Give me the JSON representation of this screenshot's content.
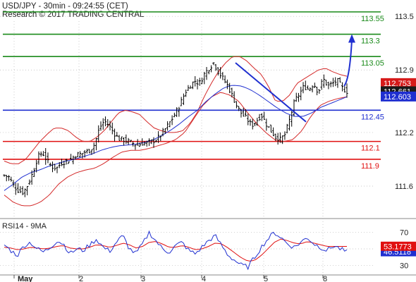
{
  "header": {
    "title": "USD/JPY - 30min - 09:24:55 (CET)",
    "subtitle": "Research © 2017 TRADING CENTRAL"
  },
  "colors": {
    "background": "#ffffff",
    "resistance": "#1a8a1a",
    "pivot": "#1f2fd0",
    "support": "#e01010",
    "bands": "#d42a2a",
    "moving_average": "#1f2fd0",
    "price_bars": "#000000",
    "current_price_box": "#1a1a1a",
    "price_tag_red": "#d61a1a",
    "price_tag_blue": "#1f2fd0",
    "rsi_line": "#1f2fd0",
    "rsi_ma": "#e01010",
    "grid": "#b8b8b8"
  },
  "chart_data": [
    {
      "type": "candlestick",
      "ylim": [
        111.3,
        113.62
      ],
      "y_ticks": [
        "113.5",
        "112.9",
        "112.2",
        "111.6"
      ],
      "x_ticks": [
        "May",
        "2",
        "3",
        "4",
        "5",
        "8"
      ],
      "grid": "dotted",
      "levels": [
        {
          "label": "113.55",
          "value": 113.55,
          "kind": "resistance"
        },
        {
          "label": "113.3",
          "value": 113.3,
          "kind": "resistance"
        },
        {
          "label": "113.05",
          "value": 113.05,
          "kind": "resistance"
        },
        {
          "label": "112.45",
          "value": 112.45,
          "kind": "pivot"
        },
        {
          "label": "112.1",
          "value": 112.1,
          "kind": "support"
        },
        {
          "label": "111.9",
          "value": 111.9,
          "kind": "support"
        }
      ],
      "price_tags": [
        {
          "label": "112.753",
          "value": 112.753,
          "style": "red"
        },
        {
          "label": "112.661",
          "value": 112.661,
          "style": "dark"
        },
        {
          "label": "112.603",
          "value": 112.603,
          "style": "blue"
        }
      ],
      "close_path": [
        111.72,
        111.7,
        111.6,
        111.55,
        111.53,
        111.62,
        111.75,
        111.92,
        111.98,
        111.88,
        111.82,
        111.8,
        111.86,
        111.88,
        111.9,
        111.95,
        111.96,
        111.98,
        112.0,
        112.07,
        112.25,
        112.33,
        112.28,
        112.2,
        112.13,
        112.12,
        112.1,
        112.08,
        112.06,
        112.08,
        112.08,
        112.1,
        112.12,
        112.18,
        112.25,
        112.33,
        112.42,
        112.52,
        112.65,
        112.72,
        112.78,
        112.75,
        112.85,
        112.92,
        112.98,
        112.88,
        112.8,
        112.72,
        112.6,
        112.48,
        112.4,
        112.35,
        112.28,
        112.33,
        112.4,
        112.3,
        112.22,
        112.15,
        112.12,
        112.18,
        112.35,
        112.55,
        112.63,
        112.72,
        112.68,
        112.75,
        112.65,
        112.8,
        112.72,
        112.75,
        112.78,
        112.7,
        112.66
      ],
      "bollinger_upper": [
        111.88,
        111.85,
        111.85,
        111.9,
        112.0,
        112.1,
        112.18,
        112.25,
        112.25,
        112.22,
        112.15,
        112.1,
        112.1,
        112.15,
        112.22,
        112.32,
        112.42,
        112.45,
        112.43,
        112.4,
        112.32,
        112.25,
        112.22,
        112.2,
        112.2,
        112.22,
        112.3,
        112.42,
        112.6,
        112.75,
        112.88,
        112.98,
        113.05,
        113.05,
        113.0,
        112.92,
        112.85,
        112.72,
        112.55,
        112.55,
        112.62,
        112.75,
        112.8,
        112.85,
        112.9,
        112.92,
        112.88,
        112.85,
        112.83
      ],
      "bollinger_lower": [
        111.5,
        111.42,
        111.38,
        111.38,
        111.42,
        111.5,
        111.62,
        111.7,
        111.75,
        111.78,
        111.8,
        111.85,
        111.92,
        111.98,
        112.0,
        112.0,
        112.02,
        112.05,
        112.08,
        112.12,
        112.2,
        112.35,
        112.5,
        112.6,
        112.65,
        112.62,
        112.55,
        112.42,
        112.3,
        112.2,
        112.12,
        112.1,
        112.12,
        112.22,
        112.38,
        112.5,
        112.55,
        112.58,
        112.6
      ],
      "moving_average": [
        111.55,
        111.62,
        111.7,
        111.75,
        111.78,
        111.82,
        111.85,
        111.88,
        111.9,
        111.93,
        111.96,
        112.0,
        112.03,
        112.05,
        112.06,
        112.07,
        112.09,
        112.12,
        112.17,
        112.23,
        112.3,
        112.38,
        112.45,
        112.55,
        112.63,
        112.7,
        112.73,
        112.72,
        112.68,
        112.62,
        112.55,
        112.48,
        112.42,
        112.38,
        112.38,
        112.42,
        112.48,
        112.52,
        112.56,
        112.6
      ],
      "trend_lines": [
        {
          "from": [
            112.98,
            0
          ],
          "to": [
            112.32,
            1
          ],
          "kind": "downtrend"
        },
        {
          "from": [
            112.72,
            0
          ],
          "to": [
            113.3,
            1
          ],
          "kind": "projection-arrow"
        }
      ]
    },
    {
      "type": "line",
      "title": "RSI14 - 9MA",
      "ylim": [
        20,
        80
      ],
      "y_ticks": [
        "70",
        "30"
      ],
      "series": [
        {
          "name": "RSI14",
          "last_label": "46.5118",
          "last_value": 46.5118,
          "color": "#1f2fd0"
        },
        {
          "name": "9MA",
          "last_label": "53.1773",
          "last_value": 53.1773,
          "color": "#e01010"
        }
      ],
      "rsi_path": [
        55,
        48,
        42,
        54,
        58,
        50,
        46,
        52,
        60,
        56,
        44,
        50,
        48,
        55,
        62,
        52,
        47,
        58,
        66,
        50,
        44,
        56,
        70,
        60,
        50,
        46,
        54,
        58,
        48,
        44,
        52,
        60,
        66,
        54,
        42,
        36,
        30,
        28,
        40,
        52,
        62,
        70,
        64,
        56,
        52,
        58,
        64,
        56,
        52,
        48,
        54,
        50,
        46
      ],
      "ma_path": [
        52,
        51,
        49,
        50,
        52,
        51,
        50,
        51,
        53,
        54,
        51,
        50,
        50,
        52,
        55,
        54,
        52,
        54,
        57,
        55,
        51,
        53,
        58,
        59,
        56,
        52,
        52,
        54,
        52,
        49,
        50,
        53,
        57,
        56,
        51,
        45,
        39,
        35,
        36,
        42,
        50,
        58,
        62,
        60,
        57,
        56,
        59,
        57,
        55,
        53,
        53,
        53,
        53
      ]
    }
  ]
}
